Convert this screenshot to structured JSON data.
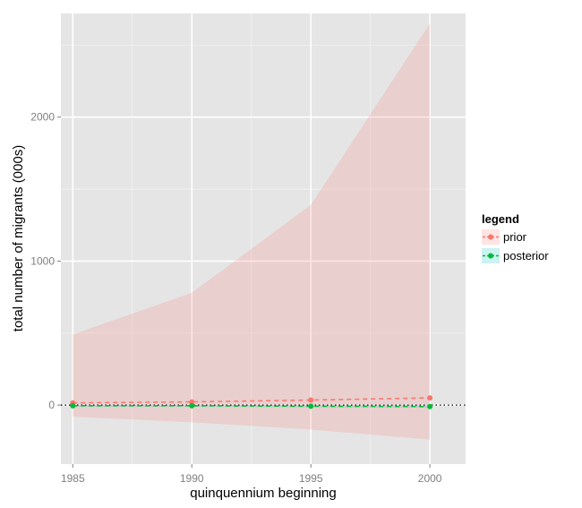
{
  "chart_data": {
    "type": "line",
    "x": [
      1985,
      1990,
      1995,
      2000
    ],
    "x_ticks": [
      "1985",
      "1990",
      "1995",
      "2000"
    ],
    "y_ticks": [
      0,
      1000,
      2000
    ],
    "y_tick_labels": [
      "0",
      "1000",
      "2000"
    ],
    "xlabel": "quinquennium beginning",
    "ylabel": "total number of migrants (000s)",
    "xlim": [
      1984.5,
      2001.5
    ],
    "ylim": [
      -410,
      2720
    ],
    "grid": true,
    "reference_line_y": 0,
    "legend": {
      "title": "legend",
      "placement": "right"
    },
    "series": [
      {
        "name": "prior",
        "values": [
          15,
          22,
          35,
          50
        ],
        "band_upper": [
          490,
          780,
          1390,
          2650
        ],
        "band_lower": [
          -80,
          -120,
          -170,
          -240
        ],
        "color": "#F8766D",
        "band_color": "#F8766D",
        "line_style": "dashed"
      },
      {
        "name": "posterior",
        "values": [
          -5,
          -5,
          -8,
          -10
        ],
        "band_upper": [
          2,
          2,
          0,
          -2
        ],
        "band_lower": [
          -12,
          -12,
          -16,
          -18
        ],
        "color": "#00BA38",
        "band_color": "#00BFC4",
        "line_style": "dashed"
      }
    ]
  }
}
